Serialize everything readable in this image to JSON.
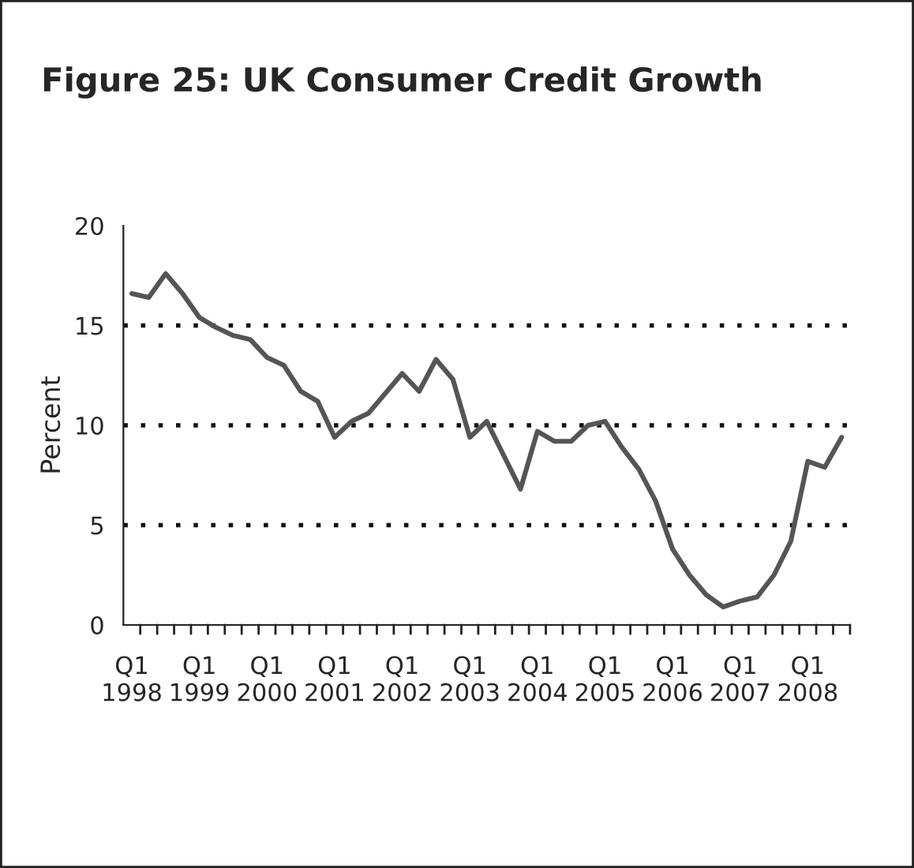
{
  "chart_data": {
    "type": "line",
    "title": "Figure 25: UK Consumer Credit Growth",
    "ylabel": "Percent",
    "categories": [
      "Q1\n1998",
      null,
      null,
      null,
      "Q1\n1999",
      null,
      null,
      null,
      "Q1\n2000",
      null,
      null,
      null,
      "Q1\n2001",
      null,
      null,
      null,
      "Q1\n2002",
      null,
      null,
      null,
      "Q1\n2003",
      null,
      null,
      null,
      "Q1\n2004",
      null,
      null,
      null,
      "Q1\n2005",
      null,
      null,
      null,
      "Q1\n2006",
      null,
      null,
      null,
      "Q1\n2007",
      null,
      null,
      null,
      "Q1\n2008",
      null,
      null
    ],
    "series": [
      {
        "color": "#555555",
        "values": [
          16.6,
          16.4,
          17.6,
          16.6,
          15.4,
          14.9,
          14.5,
          14.3,
          13.4,
          13.0,
          11.7,
          11.2,
          9.4,
          10.2,
          10.6,
          11.6,
          12.6,
          11.7,
          13.3,
          12.3,
          9.4,
          10.2,
          8.5,
          6.8,
          9.7,
          9.2,
          9.2,
          10.0,
          10.2,
          8.9,
          7.8,
          6.2,
          3.8,
          2.5,
          1.5,
          0.9,
          1.2,
          1.4,
          2.5,
          4.2,
          8.2,
          7.9,
          9.4
        ]
      }
    ],
    "ylim": [
      0,
      20
    ],
    "yticks": [
      0,
      5,
      10,
      15,
      20
    ],
    "grid": "y",
    "marker": "none",
    "line_style": "solid",
    "legend": false
  }
}
